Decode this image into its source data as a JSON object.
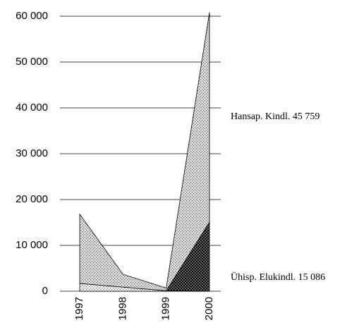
{
  "chart_data": {
    "type": "stacked_area",
    "categories": [
      "1997",
      "1998",
      "1999",
      "2000"
    ],
    "series": [
      {
        "color": "#ffffff",
        "values": [
          1700,
          900,
          100,
          0
        ]
      },
      {
        "name": "Ühisp. Elukindl.",
        "color": "#6a6a6a",
        "values": [
          0,
          0,
          0,
          15086
        ],
        "value_labels": [
          null,
          null,
          null,
          "15 086"
        ]
      },
      {
        "name": "Hansap. Kindl.",
        "color": "#e0e0e0",
        "values": [
          15100,
          2800,
          600,
          45759
        ],
        "value_labels": [
          null,
          null,
          null,
          "45 759"
        ]
      }
    ],
    "ylim": [
      0,
      60000
    ],
    "yticks": [
      0,
      {
        "value": 10000,
        "label": "10 000"
      },
      {
        "value": 20000,
        "label": "20 000"
      },
      {
        "value": 30000,
        "label": "30 000"
      },
      {
        "value": 40000,
        "label": "40 000"
      },
      {
        "value": 50000,
        "label": "50 000"
      },
      {
        "value": 60000,
        "label": "60 000"
      }
    ],
    "grid": true
  }
}
